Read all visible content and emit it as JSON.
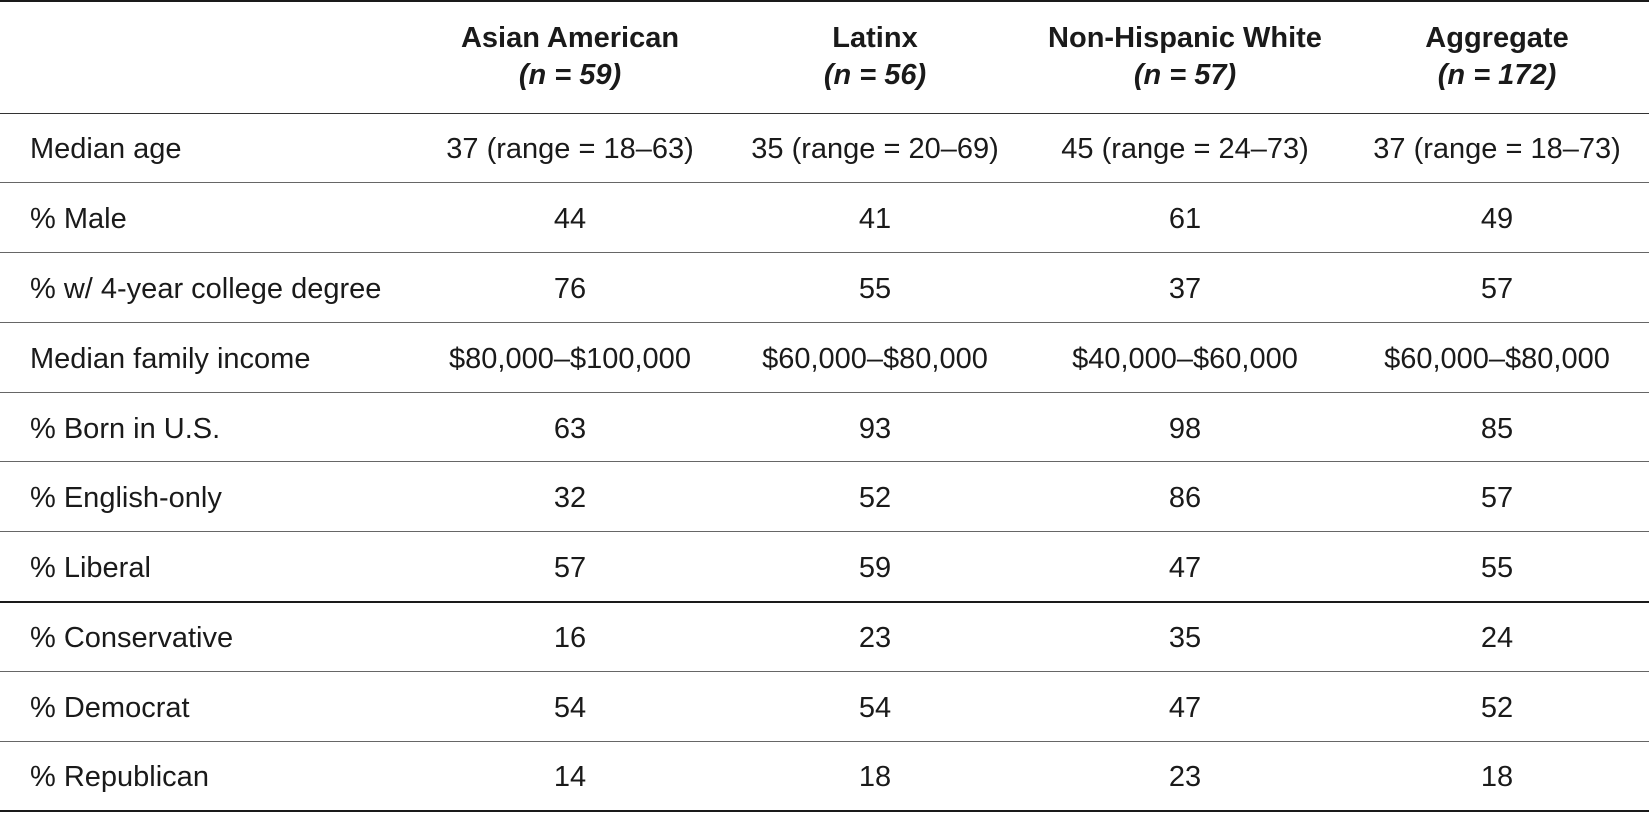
{
  "table": {
    "columns": [
      {
        "group": "Asian American",
        "n": "(n = 59)"
      },
      {
        "group": "Latinx",
        "n": "(n = 56)"
      },
      {
        "group": "Non-Hispanic White",
        "n": "(n = 57)"
      },
      {
        "group": "Aggregate",
        "n": "(n = 172)"
      }
    ],
    "rows": [
      {
        "label": "Median age",
        "cells": [
          "37 (range = 18–63)",
          "35 (range = 20–69)",
          "45 (range = 24–73)",
          "37 (range = 18–73)"
        ]
      },
      {
        "label": "% Male",
        "cells": [
          "44",
          "41",
          "61",
          "49"
        ]
      },
      {
        "label": "% w/ 4-year college degree",
        "cells": [
          "76",
          "55",
          "37",
          "57"
        ]
      },
      {
        "label": "Median family income",
        "cells": [
          "$80,000–$100,000",
          "$60,000–$80,000",
          "$40,000–$60,000",
          "$60,000–$80,000"
        ]
      },
      {
        "label": "% Born in U.S.",
        "cells": [
          "63",
          "93",
          "98",
          "85"
        ]
      },
      {
        "label": "% English-only",
        "cells": [
          "32",
          "52",
          "86",
          "57"
        ]
      },
      {
        "label": "% Liberal",
        "cells": [
          "57",
          "59",
          "47",
          "55"
        ]
      },
      {
        "label": "% Conservative",
        "cells": [
          "16",
          "23",
          "35",
          "24"
        ]
      },
      {
        "label": "% Democrat",
        "cells": [
          "54",
          "54",
          "47",
          "52"
        ]
      },
      {
        "label": "% Republican",
        "cells": [
          "14",
          "18",
          "23",
          "18"
        ]
      }
    ]
  }
}
